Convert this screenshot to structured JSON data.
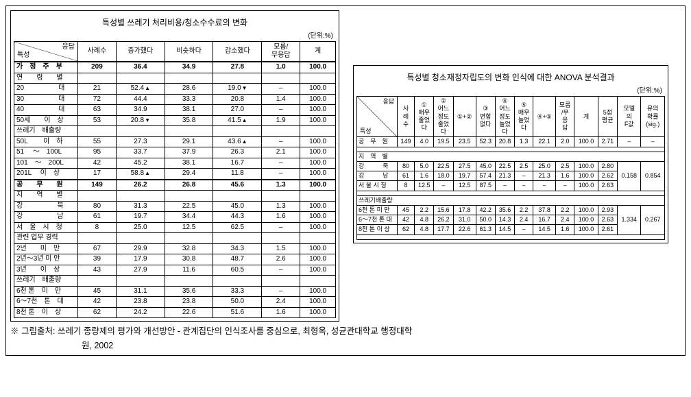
{
  "left": {
    "title": "특성별 쓰레기 처리비용/청소수수료의 변화",
    "unit": "(단위:%)",
    "diag_a": "응답",
    "diag_b": "특성",
    "cols": [
      "사례수",
      "증가했다",
      "비슷하다",
      "감소했다",
      "모름/\n무응답",
      "계"
    ],
    "rows": [
      {
        "lbl": "가　정　주　부",
        "v": [
          "209",
          "36.4",
          "34.9",
          "27.8",
          "1.0",
          "100.0"
        ],
        "bold": true,
        "thick": true
      },
      {
        "lbl": "연　　령　　별",
        "sect": true
      },
      {
        "lbl": "20　　　　　대",
        "v": [
          "21",
          "52.4",
          "28.6",
          "19.0",
          "–",
          "100.0"
        ],
        "marks": {
          "1": "up",
          "3": "dn"
        }
      },
      {
        "lbl": "30　　　　　대",
        "v": [
          "72",
          "44.4",
          "33.3",
          "20.8",
          "1.4",
          "100.0"
        ]
      },
      {
        "lbl": "40　　　　　대",
        "v": [
          "63",
          "34.9",
          "38.1",
          "27.0",
          "–",
          "100.0"
        ]
      },
      {
        "lbl": "50세　　이　상",
        "v": [
          "53",
          "20.8",
          "35.8",
          "41.5",
          "1.9",
          "100.0"
        ],
        "marks": {
          "1": "dn",
          "3": "up"
        }
      },
      {
        "lbl": "쓰레기　배출량",
        "sect": true
      },
      {
        "lbl": "50L　　 이　하",
        "v": [
          "55",
          "27.3",
          "29.1",
          "43.6",
          "–",
          "100.0"
        ],
        "marks": {
          "3": "up"
        }
      },
      {
        "lbl": "51 　～　100L",
        "v": [
          "95",
          "33.7",
          "37.9",
          "26.3",
          "2.1",
          "100.0"
        ]
      },
      {
        "lbl": "101　～　200L",
        "v": [
          "42",
          "45.2",
          "38.1",
          "16.7",
          "–",
          "100.0"
        ]
      },
      {
        "lbl": "201L　 이　상",
        "v": [
          "17",
          "58.8",
          "29.4",
          "11.8",
          "–",
          "100.0"
        ],
        "marks": {
          "1": "up"
        }
      },
      {
        "lbl": "공　　무　　원",
        "v": [
          "149",
          "26.2",
          "26.8",
          "45.6",
          "1.3",
          "100.0"
        ],
        "bold": true,
        "thick": true
      },
      {
        "lbl": "지　　역　　별",
        "sect": true
      },
      {
        "lbl": "강　　　　　북",
        "v": [
          "80",
          "31.3",
          "22.5",
          "45.0",
          "1.3",
          "100.0"
        ]
      },
      {
        "lbl": "강　　　　　남",
        "v": [
          "61",
          "19.7",
          "34.4",
          "44.3",
          "1.6",
          "100.0"
        ]
      },
      {
        "lbl": "서　울　시　청",
        "v": [
          "8",
          "25.0",
          "12.5",
          "62.5",
          "–",
          "100.0"
        ]
      },
      {
        "lbl": "관련 업무 경력",
        "sect": true
      },
      {
        "lbl": "2년　　미　만",
        "v": [
          "67",
          "29.9",
          "32.8",
          "34.3",
          "1.5",
          "100.0"
        ]
      },
      {
        "lbl": "2년～3년 미 만",
        "v": [
          "39",
          "17.9",
          "30.8",
          "48.7",
          "2.6",
          "100.0"
        ]
      },
      {
        "lbl": "3년　　이　상",
        "v": [
          "43",
          "27.9",
          "11.6",
          "60.5",
          "–",
          "100.0"
        ]
      },
      {
        "lbl": "쓰레기　배출량",
        "sect": true
      },
      {
        "lbl": "6천 톤　미　만",
        "v": [
          "45",
          "31.1",
          "35.6",
          "33.3",
          "–",
          "100.0"
        ]
      },
      {
        "lbl": "6～7천　톤　대",
        "v": [
          "42",
          "23.8",
          "23.8",
          "50.0",
          "2.4",
          "100.0"
        ]
      },
      {
        "lbl": "8천 톤　이　상",
        "v": [
          "62",
          "24.2",
          "22.6",
          "51.6",
          "1.6",
          "100.0"
        ]
      }
    ]
  },
  "right": {
    "title": "특성별 청소재정자립도의 변화 인식에 대한 ANOVA 분석결과",
    "unit": "(단위:%)",
    "cols": [
      "사\n례\n수",
      "①\n매우\n줄었\n다",
      "②\n어느\n정도\n줄었\n다",
      "①+②",
      "③\n변함\n없다",
      "④\n어느\n정도\n늘었\n다",
      "⑤\n매우\n늘었\n다",
      "④+⑤",
      "모름\n/무\n응\n답",
      "계",
      "5점\n평균",
      "모델\n의\nF값",
      "유의\n확률\n(sig.)"
    ],
    "groups": [
      {
        "sect": "공　무　원",
        "rows": [
          {
            "lbl": "",
            "v": [
              "149",
              "4.0",
              "19.5",
              "23.5",
              "52.3",
              "20.8",
              "1.3",
              "22.1",
              "2.0",
              "100.0",
              "2.71",
              "–",
              "–"
            ]
          }
        ],
        "inline": true
      },
      {
        "sect": "지　역　별",
        "rows": [
          {
            "lbl": "강　　　북",
            "v": [
              "80",
              "5.0",
              "22.5",
              "27.5",
              "45.0",
              "22.5",
              "2.5",
              "25.0",
              "2.5",
              "100.0",
              "2.80",
              "",
              ""
            ]
          },
          {
            "lbl": "강　　　남",
            "v": [
              "61",
              "1.6",
              "18.0",
              "19.7",
              "57.4",
              "21.3",
              "–",
              "21.3",
              "1.6",
              "100.0",
              "2.62",
              "0.158",
              "0.854"
            ]
          },
          {
            "lbl": "서 울 시 청",
            "v": [
              "8",
              "12.5",
              "–",
              "12.5",
              "87.5",
              "–",
              "–",
              "–",
              "–",
              "100.0",
              "2.63",
              "",
              ""
            ]
          }
        ],
        "span": [
          11,
          12
        ]
      },
      {
        "sect": "쓰레기배출량",
        "rows": [
          {
            "lbl": "6천 톤 미 만",
            "v": [
              "45",
              "2.2",
              "15.6",
              "17.8",
              "42.2",
              "35.6",
              "2.2",
              "37.8",
              "2.2",
              "100.0",
              "2.93",
              "",
              ""
            ]
          },
          {
            "lbl": "6～7천 톤 대",
            "v": [
              "42",
              "4.8",
              "26.2",
              "31.0",
              "50.0",
              "14.3",
              "2.4",
              "16.7",
              "2.4",
              "100.0",
              "2.63",
              "1.334",
              "0.267"
            ]
          },
          {
            "lbl": "8천 톤 이 상",
            "v": [
              "62",
              "4.8",
              "17.7",
              "22.6",
              "61.3",
              "14.5",
              "–",
              "14.5",
              "1.6",
              "100.0",
              "2.61",
              "",
              ""
            ]
          }
        ],
        "span": [
          11,
          12
        ]
      }
    ]
  },
  "source": {
    "prefix": "※ 그림출처:",
    "text": "쓰레기 종량제의 평가와 개선방안 - 관계집단의 인식조사를 중심으로, 최형옥, 성균관대학교 행정대학",
    "text2": "원, 2002"
  }
}
